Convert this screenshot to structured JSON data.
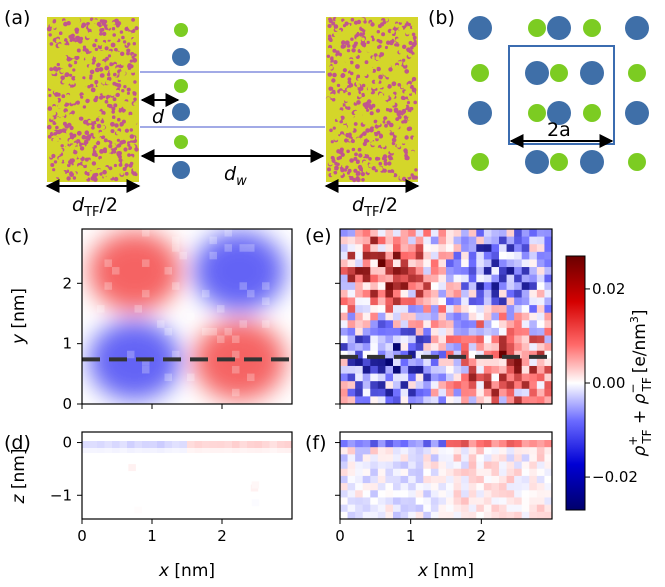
{
  "panels": {
    "a": "(a)",
    "b": "(b)",
    "c": "(c)",
    "d": "(d)",
    "e": "(e)",
    "f": "(f)"
  },
  "schematic": {
    "d_label": "d",
    "dw_label": "d",
    "dw_sub": "w",
    "dtf_label": "d",
    "dtf_sub": "TF",
    "dtf_suffix": "/2",
    "lattice_label": "2a",
    "ion_colors": {
      "cation": "#3f6fa8",
      "anion": "#7ccc22"
    },
    "thomas_fermi_colors": {
      "yellow": "#d4d62a",
      "magenta": "#c0558f"
    }
  },
  "chart_data": [
    {
      "type": "heatmap",
      "panel": "c",
      "description_free": true,
      "xlim": [
        0,
        3.0
      ],
      "ylim": [
        0,
        2.9
      ],
      "xticks": [
        "0",
        "1",
        "2"
      ],
      "yticks": [
        "0",
        "1",
        "2"
      ],
      "ylabel": "y [nm]",
      "blobs": [
        {
          "x": 0.75,
          "y": 2.2,
          "value": 0.006
        },
        {
          "x": 2.25,
          "y": 2.2,
          "value": -0.006
        },
        {
          "x": 0.75,
          "y": 0.72,
          "value": -0.006
        },
        {
          "x": 2.25,
          "y": 0.72,
          "value": 0.006
        }
      ],
      "dashed_line_y": 0.74
    },
    {
      "type": "heatmap",
      "panel": "d",
      "xlim": [
        0,
        3.0
      ],
      "ylim": [
        -1.45,
        0.2
      ],
      "xticks": [
        "0",
        "1",
        "2"
      ],
      "yticks": [
        "0",
        "−1"
      ],
      "xlabel": "x [nm]",
      "ylabel": "z [nm]",
      "surface_band": [
        {
          "x_from": 0.0,
          "x_to": 1.5,
          "value": -0.004
        },
        {
          "x_from": 1.5,
          "x_to": 3.0,
          "value": 0.004
        }
      ]
    },
    {
      "type": "heatmap",
      "panel": "e",
      "xlim": [
        0,
        3.0
      ],
      "ylim": [
        0,
        2.9
      ],
      "description_free": true,
      "quadrants": [
        {
          "x": 0.75,
          "y": 2.2,
          "value": 0.012
        },
        {
          "x": 2.25,
          "y": 2.2,
          "value": -0.012
        },
        {
          "x": 0.75,
          "y": 0.72,
          "value": -0.012
        },
        {
          "x": 2.25,
          "y": 0.72,
          "value": 0.012
        }
      ],
      "dashed_line_y": 0.78
    },
    {
      "type": "heatmap",
      "panel": "f",
      "xlim": [
        0,
        3.0
      ],
      "ylim": [
        -1.45,
        0.2
      ],
      "xticks": [
        "0",
        "1",
        "2"
      ],
      "xlabel": "x [nm]",
      "surface_band": [
        {
          "x_from": 0.0,
          "x_to": 1.5,
          "value": -0.02
        },
        {
          "x_from": 1.5,
          "x_to": 3.0,
          "value": 0.02
        }
      ]
    }
  ],
  "colorbar": {
    "range": [
      -0.027,
      0.027
    ],
    "ticks": [
      {
        "value": 0.02,
        "label": "0.02"
      },
      {
        "value": 0.0,
        "label": "0.00"
      },
      {
        "value": -0.02,
        "label": "−0.02"
      }
    ],
    "label_main": "ρ",
    "label_plus": "+",
    "label_minus": "−",
    "label_sub": "TF",
    "label_unit": "[e/nm",
    "label_unit_sup": "3",
    "label_unit_end": "]",
    "label_sep": " + "
  },
  "axis_labels": {
    "y": "y",
    "z": "z",
    "x": "x",
    "unit": " [nm]"
  }
}
